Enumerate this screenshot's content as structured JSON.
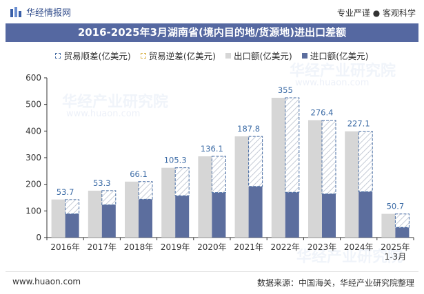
{
  "header": {
    "brand": "华经情报网",
    "tagline": "专业严谨 ● 客观科学"
  },
  "watermark": {
    "text": "华经产业研究院",
    "url": "www.huaon.com"
  },
  "footer": {
    "left": "www.huaon.com",
    "right": "数据来源：中国海关，华经产业研究院整理"
  },
  "colors": {
    "export": "#d6d6d6",
    "import": "#5c6e9e",
    "surplus_border": "#4a6fa5",
    "deficit_border": "#d9b24a",
    "title_bg": "#5568a1"
  },
  "chart_data": {
    "type": "bar",
    "title": "2016-2025年3月湖南省(境内目的地/货源地)进出口差额",
    "categories": [
      "2016年",
      "2017年",
      "2018年",
      "2019年",
      "2020年",
      "2021年",
      "2022年",
      "2023年",
      "2024年",
      "2025年\n1-3月"
    ],
    "ylim": [
      0,
      600
    ],
    "yticks": [
      0,
      100,
      200,
      300,
      400,
      500,
      600
    ],
    "legend_position": "top",
    "grid": false,
    "series": [
      {
        "name": "贸易顺差(亿美元)",
        "values": [
          53.7,
          53.3,
          66.1,
          105.3,
          136.1,
          187.8,
          355,
          276.4,
          227.1,
          50.7
        ]
      },
      {
        "name": "贸易逆差(亿美元)",
        "values": [
          0,
          0,
          0,
          0,
          0,
          0,
          0,
          0,
          0,
          0
        ]
      },
      {
        "name": "出口额(亿美元)",
        "values": [
          143,
          176,
          210,
          262,
          305,
          380,
          525,
          441,
          399,
          89
        ]
      },
      {
        "name": "进口额(亿美元)",
        "values": [
          89,
          123,
          144,
          157,
          169,
          192,
          170,
          164,
          172,
          38
        ]
      }
    ],
    "labels": [
      "53.7",
      "53.3",
      "66.1",
      "105.3",
      "136.1",
      "187.8",
      "355",
      "276.4",
      "227.1",
      "50.7"
    ]
  }
}
